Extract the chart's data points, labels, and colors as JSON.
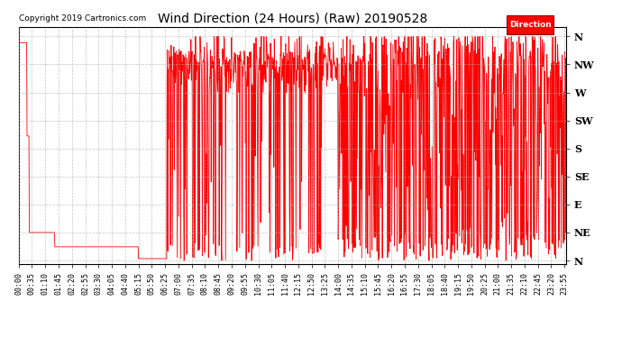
{
  "title": "Wind Direction (24 Hours) (Raw) 20190528",
  "copyright": "Copyright 2019 Cartronics.com",
  "legend_label": "Direction",
  "line_color": "#ff0000",
  "background_color": "#ffffff",
  "grid_color": "#aaaaaa",
  "ytick_labels": [
    "N",
    "NW",
    "W",
    "SW",
    "S",
    "SE",
    "E",
    "NE",
    "N"
  ],
  "ytick_values": [
    360,
    315,
    270,
    225,
    180,
    135,
    90,
    45,
    0
  ],
  "ylim": [
    -5,
    375
  ],
  "xtick_step_minutes": 35,
  "total_minutes": 1440,
  "title_fontsize": 10,
  "copyright_fontsize": 6.5,
  "tick_label_fontsize": 6,
  "ytick_fontsize": 8
}
